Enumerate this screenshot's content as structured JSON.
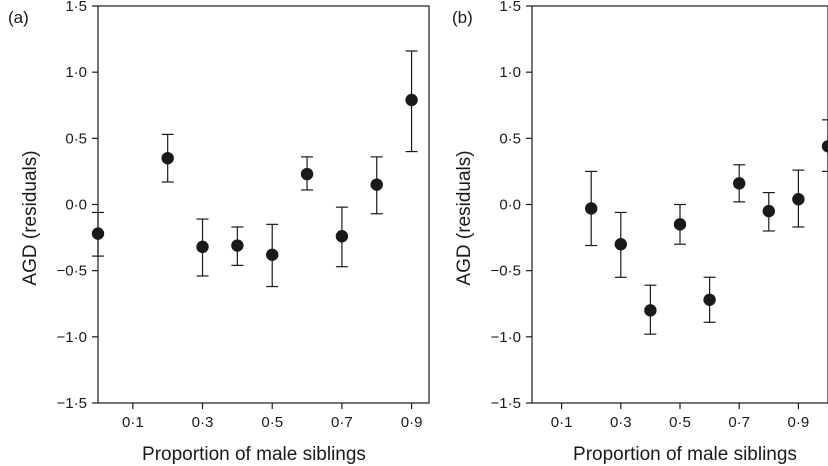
{
  "chart_data": [
    {
      "type": "scatter",
      "panel_label": "(a)",
      "xlabel": "Proportion of male siblings",
      "ylabel": "AGD (residuals)",
      "xlim": [
        0,
        0.95
      ],
      "ylim": [
        -1.5,
        1.5
      ],
      "x_ticks": [
        0.1,
        0.3,
        0.5,
        0.7,
        0.9
      ],
      "x_tick_labels": [
        "0·1",
        "0·3",
        "0·5",
        "0·7",
        "0·9"
      ],
      "y_ticks": [
        -1.5,
        -1.0,
        -0.5,
        0.0,
        0.5,
        1.0,
        1.5
      ],
      "y_tick_labels": [
        "−1·5",
        "−1·0",
        "−0·5",
        "0·0",
        "0·5",
        "1·0",
        "1·5"
      ],
      "grid": false,
      "error_bars": true,
      "points": [
        {
          "x": 0.0,
          "y": -0.22,
          "lo": -0.39,
          "hi": -0.06
        },
        {
          "x": 0.2,
          "y": 0.35,
          "lo": 0.17,
          "hi": 0.53
        },
        {
          "x": 0.3,
          "y": -0.32,
          "lo": -0.54,
          "hi": -0.11
        },
        {
          "x": 0.4,
          "y": -0.31,
          "lo": -0.46,
          "hi": -0.17
        },
        {
          "x": 0.5,
          "y": -0.38,
          "lo": -0.62,
          "hi": -0.15
        },
        {
          "x": 0.6,
          "y": 0.23,
          "lo": 0.11,
          "hi": 0.36
        },
        {
          "x": 0.7,
          "y": -0.24,
          "lo": -0.47,
          "hi": -0.02
        },
        {
          "x": 0.8,
          "y": 0.15,
          "lo": -0.07,
          "hi": 0.36
        },
        {
          "x": 0.9,
          "y": 0.79,
          "lo": 0.4,
          "hi": 1.16
        }
      ]
    },
    {
      "type": "scatter",
      "panel_label": "(b)",
      "xlabel": "Proportion of male siblings",
      "ylabel": "AGD (residuals)",
      "xlim": [
        0,
        1.0
      ],
      "ylim": [
        -1.5,
        1.5
      ],
      "x_ticks": [
        0.1,
        0.3,
        0.5,
        0.7,
        0.9
      ],
      "x_tick_labels": [
        "0·1",
        "0·3",
        "0·5",
        "0·7",
        "0·9"
      ],
      "y_ticks": [
        -1.5,
        -1.0,
        -0.5,
        0.0,
        0.5,
        1.0,
        1.5
      ],
      "y_tick_labels": [
        "−1·5",
        "−1·0",
        "−0·5",
        "0·0",
        "0·5",
        "1·0",
        "1·5"
      ],
      "grid": false,
      "error_bars": true,
      "points": [
        {
          "x": 0.2,
          "y": -0.03,
          "lo": -0.31,
          "hi": 0.25
        },
        {
          "x": 0.3,
          "y": -0.3,
          "lo": -0.55,
          "hi": -0.06
        },
        {
          "x": 0.4,
          "y": -0.8,
          "lo": -0.98,
          "hi": -0.61
        },
        {
          "x": 0.5,
          "y": -0.15,
          "lo": -0.3,
          "hi": 0.0
        },
        {
          "x": 0.6,
          "y": -0.72,
          "lo": -0.89,
          "hi": -0.55
        },
        {
          "x": 0.7,
          "y": 0.16,
          "lo": 0.02,
          "hi": 0.3
        },
        {
          "x": 0.8,
          "y": -0.05,
          "lo": -0.2,
          "hi": 0.09
        },
        {
          "x": 0.9,
          "y": 0.04,
          "lo": -0.17,
          "hi": 0.26
        },
        {
          "x": 1.0,
          "y": 0.44,
          "lo": 0.25,
          "hi": 0.64
        }
      ]
    }
  ]
}
